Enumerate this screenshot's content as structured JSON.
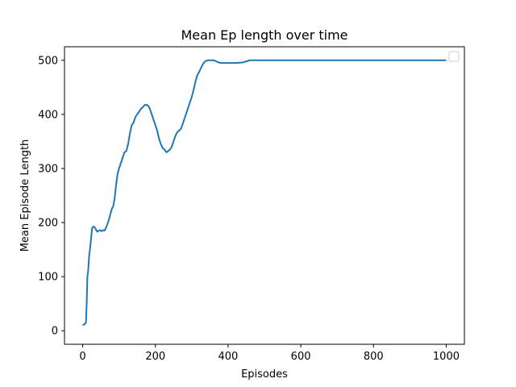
{
  "chart_data": {
    "type": "line",
    "title": "Mean Ep length over time",
    "xlabel": "Episodes",
    "ylabel": "Mean Episode Length",
    "xlim": [
      -50,
      1050
    ],
    "ylim": [
      -25,
      525
    ],
    "xticks": [
      0,
      200,
      400,
      600,
      800,
      1000
    ],
    "yticks": [
      0,
      100,
      200,
      300,
      400,
      500
    ],
    "grid": false,
    "legend": "top-right",
    "legend_entries": [],
    "series": [
      {
        "color": "#1f77b4",
        "x": [
          0,
          5,
          9,
          11,
          13,
          15,
          18,
          20,
          23,
          26,
          30,
          33,
          36,
          40,
          44,
          48,
          52,
          56,
          60,
          64,
          68,
          72,
          76,
          80,
          84,
          88,
          92,
          96,
          100,
          105,
          110,
          115,
          120,
          125,
          130,
          135,
          140,
          145,
          150,
          155,
          160,
          165,
          170,
          175,
          180,
          185,
          190,
          195,
          200,
          205,
          210,
          215,
          220,
          225,
          230,
          235,
          240,
          245,
          250,
          255,
          260,
          265,
          270,
          275,
          280,
          285,
          290,
          295,
          300,
          305,
          310,
          315,
          320,
          325,
          330,
          335,
          340,
          345,
          350,
          355,
          360,
          365,
          370,
          380,
          390,
          400,
          410,
          420,
          440,
          460,
          480,
          490,
          500,
          510,
          520,
          600,
          700,
          800,
          900,
          1000
        ],
        "y": [
          10,
          12,
          15,
          50,
          100,
          110,
          140,
          150,
          170,
          190,
          193,
          191,
          188,
          183,
          185,
          186,
          184,
          186,
          185,
          190,
          197,
          205,
          215,
          225,
          230,
          245,
          270,
          290,
          300,
          310,
          320,
          330,
          332,
          345,
          365,
          380,
          385,
          395,
          400,
          405,
          410,
          413,
          417,
          418,
          416,
          410,
          400,
          390,
          380,
          370,
          355,
          345,
          338,
          335,
          330,
          332,
          335,
          340,
          350,
          360,
          367,
          370,
          373,
          382,
          392,
          402,
          412,
          422,
          432,
          445,
          460,
          472,
          478,
          485,
          492,
          497,
          499,
          500,
          500,
          500,
          500,
          499,
          497,
          495,
          495,
          495,
          495,
          495,
          496,
          500,
          500,
          500,
          500,
          500,
          500,
          500,
          500,
          500,
          500,
          500
        ]
      }
    ]
  }
}
